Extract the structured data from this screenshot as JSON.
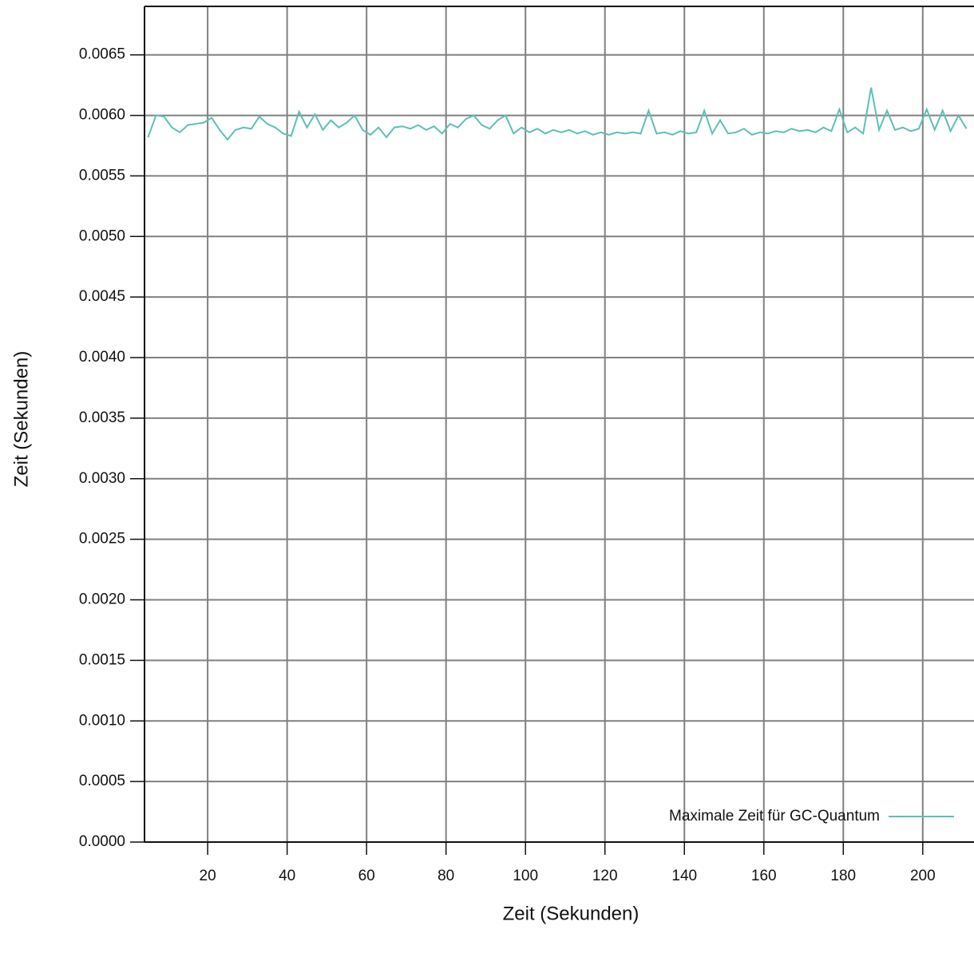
{
  "chart_data": {
    "type": "line",
    "xlabel": "Zeit (Sekunden)",
    "ylabel": "Zeit (Sekunden)",
    "x": [
      5,
      7,
      9,
      11,
      13,
      15,
      17,
      19,
      21,
      23,
      25,
      27,
      29,
      31,
      33,
      35,
      37,
      39,
      41,
      43,
      45,
      47,
      49,
      51,
      53,
      55,
      57,
      59,
      61,
      63,
      65,
      67,
      69,
      71,
      73,
      75,
      77,
      79,
      81,
      83,
      85,
      87,
      89,
      91,
      93,
      95,
      97,
      99,
      101,
      103,
      105,
      107,
      109,
      111,
      113,
      115,
      117,
      119,
      121,
      123,
      125,
      127,
      129,
      131,
      133,
      135,
      137,
      139,
      141,
      143,
      145,
      147,
      149,
      151,
      153,
      155,
      157,
      159,
      161,
      163,
      165,
      167,
      169,
      171,
      173,
      175,
      177,
      179,
      181,
      183,
      185,
      187,
      189,
      191,
      193,
      195,
      197,
      199,
      201,
      203,
      205,
      207,
      209,
      211
    ],
    "series": [
      {
        "name": "Maximale Zeit für GC-Quantum",
        "color": "#5cc0b6",
        "values": [
          0.00582,
          0.006,
          0.00599,
          0.0059,
          0.00586,
          0.00592,
          0.00593,
          0.00594,
          0.00598,
          0.00588,
          0.0058,
          0.00588,
          0.0059,
          0.00589,
          0.00599,
          0.00593,
          0.0059,
          0.00585,
          0.00583,
          0.00603,
          0.0059,
          0.00601,
          0.00588,
          0.00596,
          0.0059,
          0.00594,
          0.006,
          0.00588,
          0.00584,
          0.0059,
          0.00582,
          0.0059,
          0.00591,
          0.00589,
          0.00592,
          0.00588,
          0.00591,
          0.00585,
          0.00593,
          0.0059,
          0.00597,
          0.006,
          0.00592,
          0.00589,
          0.00596,
          0.006,
          0.00585,
          0.0059,
          0.00586,
          0.00589,
          0.00585,
          0.00588,
          0.00586,
          0.00588,
          0.00585,
          0.00587,
          0.00584,
          0.00586,
          0.00584,
          0.00586,
          0.00585,
          0.00586,
          0.00585,
          0.00604,
          0.00585,
          0.00586,
          0.00584,
          0.00587,
          0.00585,
          0.00586,
          0.00604,
          0.00585,
          0.00596,
          0.00585,
          0.00586,
          0.00589,
          0.00584,
          0.00586,
          0.00585,
          0.00587,
          0.00586,
          0.00589,
          0.00587,
          0.00588,
          0.00586,
          0.0059,
          0.00587,
          0.00605,
          0.00586,
          0.0059,
          0.00585,
          0.00623,
          0.00588,
          0.00604,
          0.00588,
          0.0059,
          0.00587,
          0.00589,
          0.00605,
          0.00588,
          0.00604,
          0.00587,
          0.006,
          0.00589
        ]
      }
    ],
    "xlim": [
      4.1,
      212.9
    ],
    "ylim": [
      0,
      0.0069
    ],
    "xticks": [
      20,
      40,
      60,
      80,
      100,
      120,
      140,
      160,
      180,
      200
    ],
    "yticks": [
      {
        "value": 0,
        "label": "0.0000"
      },
      0.0005,
      {
        "value": 0.001,
        "label": "0.0010"
      },
      0.0015,
      {
        "value": 0.002,
        "label": "0.0020"
      },
      0.0025,
      {
        "value": 0.003,
        "label": "0.0030"
      },
      0.0035,
      {
        "value": 0.004,
        "label": "0.0040"
      },
      0.0045,
      {
        "value": 0.005,
        "label": "0.0050"
      },
      0.0055,
      {
        "value": 0.006,
        "label": "0.0060"
      },
      0.0065
    ],
    "grid": true,
    "legend": "lower right"
  }
}
